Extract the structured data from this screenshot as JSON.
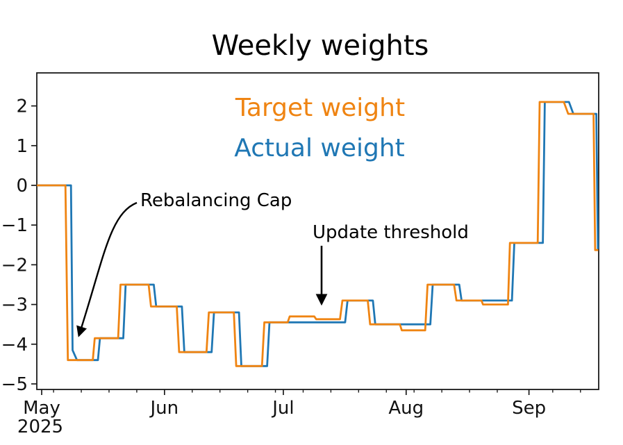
{
  "chart_data": {
    "type": "line",
    "title": "Weekly weights",
    "subtitle": "",
    "xlabel": "",
    "ylabel": "",
    "legend_position": "upper center, stacked colored text (no box)",
    "grid": false,
    "x_axis": {
      "unit": "days since 2025-05-01",
      "range": [
        -1.23,
        140.6
      ],
      "major_ticks": [
        {
          "day": 0,
          "label": "May"
        },
        {
          "day": 31,
          "label": "Jun"
        },
        {
          "day": 61,
          "label": "Jul"
        },
        {
          "day": 92,
          "label": "Aug"
        },
        {
          "day": 123,
          "label": "Sep"
        }
      ],
      "year_label": "2025",
      "minor_tick_days": [
        3,
        10,
        17,
        24,
        38,
        45,
        52,
        59,
        66,
        73,
        80,
        87,
        94,
        101,
        108,
        115,
        129,
        136
      ]
    },
    "y_axis": {
      "range": [
        -5.14,
        2.832
      ],
      "ticks": [
        {
          "value": 2,
          "label": "2"
        },
        {
          "value": 1,
          "label": "1"
        },
        {
          "value": 0,
          "label": "0"
        },
        {
          "value": -1,
          "label": "−1"
        },
        {
          "value": -2,
          "label": "−2"
        },
        {
          "value": -3,
          "label": "−3"
        },
        {
          "value": -4,
          "label": "−4"
        },
        {
          "value": -5,
          "label": "−5"
        }
      ]
    },
    "series": [
      {
        "name": "Target weight",
        "color": "#ef8412",
        "points": [
          [
            -1.23,
            0
          ],
          [
            6.0,
            0
          ],
          [
            6.6,
            -4.4
          ],
          [
            12.9,
            -4.4
          ],
          [
            13.4,
            -3.85
          ],
          [
            19.3,
            -3.85
          ],
          [
            19.9,
            -2.5
          ],
          [
            27.0,
            -2.5
          ],
          [
            27.6,
            -3.05
          ],
          [
            34.1,
            -3.05
          ],
          [
            34.7,
            -4.2
          ],
          [
            41.6,
            -4.2
          ],
          [
            42.2,
            -3.2
          ],
          [
            48.5,
            -3.2
          ],
          [
            49.1,
            -4.55
          ],
          [
            55.6,
            -4.55
          ],
          [
            56.2,
            -3.45
          ],
          [
            62.1,
            -3.45
          ],
          [
            62.6,
            -3.3
          ],
          [
            68.8,
            -3.3
          ],
          [
            69.3,
            -3.37
          ],
          [
            75.3,
            -3.37
          ],
          [
            75.9,
            -2.9
          ],
          [
            82.3,
            -2.9
          ],
          [
            82.9,
            -3.5
          ],
          [
            90.4,
            -3.5
          ],
          [
            90.9,
            -3.65
          ],
          [
            96.8,
            -3.65
          ],
          [
            97.4,
            -2.5
          ],
          [
            104.1,
            -2.5
          ],
          [
            104.7,
            -2.9
          ],
          [
            111.0,
            -2.9
          ],
          [
            111.4,
            -3.0
          ],
          [
            117.7,
            -3.0
          ],
          [
            118.2,
            -1.45
          ],
          [
            125.2,
            -1.45
          ],
          [
            125.7,
            2.1
          ],
          [
            131.8,
            2.1
          ],
          [
            132.9,
            1.8
          ],
          [
            139.3,
            1.8
          ],
          [
            139.7,
            -1.63
          ],
          [
            140.5,
            -1.63
          ]
        ]
      },
      {
        "name": "Actual weight",
        "color": "#1f77b4",
        "points": [
          [
            -1.23,
            0
          ],
          [
            7.4,
            0
          ],
          [
            7.8,
            -4.15
          ],
          [
            8.9,
            -4.4
          ],
          [
            14.2,
            -4.4
          ],
          [
            14.7,
            -3.85
          ],
          [
            20.6,
            -3.85
          ],
          [
            21.2,
            -2.5
          ],
          [
            28.3,
            -2.5
          ],
          [
            28.9,
            -3.05
          ],
          [
            35.4,
            -3.05
          ],
          [
            36.0,
            -4.2
          ],
          [
            42.9,
            -4.2
          ],
          [
            43.5,
            -3.2
          ],
          [
            49.8,
            -3.2
          ],
          [
            50.4,
            -4.55
          ],
          [
            56.9,
            -4.55
          ],
          [
            57.5,
            -3.45
          ],
          [
            76.6,
            -3.45
          ],
          [
            77.2,
            -2.9
          ],
          [
            83.6,
            -2.9
          ],
          [
            84.2,
            -3.5
          ],
          [
            98.1,
            -3.5
          ],
          [
            98.7,
            -2.5
          ],
          [
            105.4,
            -2.5
          ],
          [
            106.0,
            -2.9
          ],
          [
            118.7,
            -2.9
          ],
          [
            119.3,
            -1.45
          ],
          [
            126.5,
            -1.45
          ],
          [
            127.0,
            2.1
          ],
          [
            133.1,
            2.1
          ],
          [
            134.2,
            1.8
          ],
          [
            140.0,
            1.8
          ],
          [
            140.4,
            -1.6
          ],
          [
            140.5,
            -1.6
          ]
        ]
      }
    ],
    "annotations": [
      {
        "text": "Rebalancing Cap",
        "arrow": "curved, points to actual-weight capped drop near May 8 at ≈ −4.15"
      },
      {
        "text": "Update threshold",
        "arrow": "straight down, points to small target move near Jul 12 at ≈ −3.3"
      }
    ]
  }
}
